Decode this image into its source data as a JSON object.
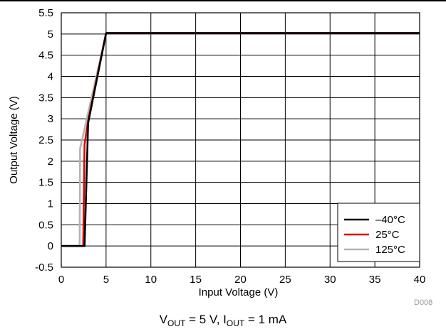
{
  "caption": {
    "vout_label": "V",
    "vout_sub": "OUT",
    "vout_value": " = 5 V, I",
    "iout_sub": "OUT",
    "iout_value": " = 1 mA"
  },
  "figure_id": "D008",
  "chart_data": {
    "type": "line",
    "title": "",
    "xlabel": "Input Voltage (V)",
    "ylabel": "Output Voltage (V)",
    "xlim": [
      0,
      40
    ],
    "ylim": [
      -0.5,
      5.5
    ],
    "xticks": [
      0,
      5,
      10,
      15,
      20,
      25,
      30,
      35,
      40
    ],
    "xtick_labels": [
      "0",
      "5",
      "10",
      "15",
      "20",
      "25",
      "30",
      "35",
      "40"
    ],
    "yticks": [
      -0.5,
      0,
      0.5,
      1,
      1.5,
      2,
      2.5,
      3,
      3.5,
      4,
      4.5,
      5,
      5.5
    ],
    "ytick_labels": [
      "-0.5",
      "0",
      "0.5",
      "1",
      "1.5",
      "2",
      "2.5",
      "3",
      "3.5",
      "4",
      "4.5",
      "5",
      "5.5"
    ],
    "grid": true,
    "legend_position": "bottom-right",
    "series": [
      {
        "name": "–40°C",
        "color": "#000000",
        "points": [
          [
            0,
            0
          ],
          [
            2.5,
            0
          ],
          [
            2.6,
            0
          ],
          [
            3.0,
            2.9
          ],
          [
            5.0,
            5.02
          ],
          [
            40,
            5.02
          ]
        ]
      },
      {
        "name": "25°C",
        "color": "#e00000",
        "points": [
          [
            0,
            0
          ],
          [
            2.2,
            0
          ],
          [
            2.45,
            0
          ],
          [
            2.6,
            2.4
          ],
          [
            3.0,
            2.95
          ],
          [
            5.0,
            5.02
          ],
          [
            40,
            5.02
          ]
        ]
      },
      {
        "name": "125°C",
        "color": "#b4b4b4",
        "points": [
          [
            0,
            0
          ],
          [
            2.0,
            0
          ],
          [
            2.05,
            0
          ],
          [
            2.1,
            2.3
          ],
          [
            2.8,
            2.95
          ],
          [
            5.0,
            5.02
          ],
          [
            40,
            5.02
          ]
        ]
      }
    ]
  }
}
